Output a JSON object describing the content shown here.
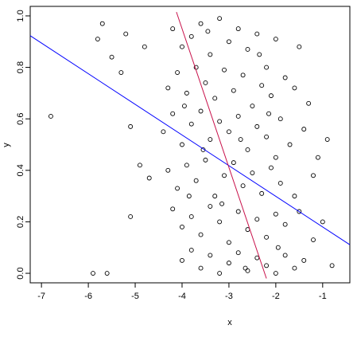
{
  "chart_data": {
    "type": "scatter",
    "x_label": "x",
    "y_label": "y",
    "xlim": [
      -7.24,
      -0.42
    ],
    "ylim": [
      -0.037,
      1.037
    ],
    "xticks": [
      -7,
      -6,
      -5,
      -4,
      -3,
      -2,
      -1
    ],
    "yticks": [
      {
        "value": 0,
        "label": "0.0"
      },
      0.2,
      0.4,
      0.6,
      0.8,
      {
        "value": 1,
        "label": "1.0"
      }
    ],
    "series": [
      {
        "color": "#000000",
        "x": [
          -6.8,
          -5.7,
          -5.8,
          -5.5,
          -5.1,
          -5.1,
          -5.9,
          -5.6,
          -5.3,
          -4.9,
          -4.7,
          -0.9,
          -0.8,
          -1.0,
          -4.8,
          -5.2,
          -4.2,
          -4.0,
          -3.8,
          -3.6,
          -3.4,
          -3.2,
          -3.0,
          -2.8,
          -2.6,
          -2.4,
          -2.2,
          -2.0,
          -1.8,
          -1.5,
          -4.3,
          -4.1,
          -3.9,
          -3.7,
          -3.5,
          -3.3,
          -3.1,
          -2.9,
          -2.7,
          -2.5,
          -2.3,
          -2.1,
          -1.9,
          -1.6,
          -1.3,
          -4.4,
          -4.2,
          -4.0,
          -3.8,
          -3.6,
          -3.4,
          -3.2,
          -3.0,
          -2.8,
          -2.6,
          -2.4,
          -2.2,
          -2.0,
          -1.7,
          -1.4,
          -1.1,
          -4.3,
          -4.1,
          -3.9,
          -3.7,
          -3.5,
          -3.3,
          -3.1,
          -2.9,
          -2.7,
          -2.5,
          -2.3,
          -2.1,
          -1.9,
          -1.6,
          -1.2,
          -4.2,
          -4.0,
          -3.8,
          -3.6,
          -3.4,
          -3.2,
          -3.0,
          -2.8,
          -2.6,
          -2.4,
          -2.2,
          -2.0,
          -1.8,
          -1.5,
          -1.2,
          -4.0,
          -3.8,
          -3.6,
          -3.4,
          -3.2,
          -3.0,
          -2.8,
          -2.6,
          -2.4,
          -2.2,
          -2.0,
          -1.8,
          -1.6,
          -1.4,
          -3.95,
          -3.55,
          -3.15,
          -2.75,
          -2.35,
          -1.95,
          -3.45,
          -2.65,
          -3.85,
          -2.15
        ],
        "y": [
          0.61,
          0.97,
          0.91,
          0.84,
          0.57,
          0.22,
          0.0,
          0.0,
          0.78,
          0.42,
          0.37,
          0.52,
          0.03,
          0.2,
          0.88,
          0.93,
          0.95,
          0.88,
          0.92,
          0.97,
          0.85,
          0.99,
          0.9,
          0.95,
          0.87,
          0.93,
          0.8,
          0.91,
          0.76,
          0.88,
          0.72,
          0.78,
          0.7,
          0.8,
          0.74,
          0.68,
          0.79,
          0.71,
          0.77,
          0.65,
          0.73,
          0.69,
          0.6,
          0.72,
          0.66,
          0.55,
          0.62,
          0.5,
          0.58,
          0.63,
          0.52,
          0.59,
          0.55,
          0.61,
          0.48,
          0.57,
          0.53,
          0.45,
          0.5,
          0.56,
          0.45,
          0.4,
          0.33,
          0.42,
          0.36,
          0.44,
          0.3,
          0.38,
          0.43,
          0.34,
          0.39,
          0.31,
          0.41,
          0.35,
          0.3,
          0.38,
          0.25,
          0.18,
          0.22,
          0.15,
          0.26,
          0.2,
          0.12,
          0.24,
          0.17,
          0.21,
          0.14,
          0.23,
          0.19,
          0.24,
          0.13,
          0.05,
          0.09,
          0.02,
          0.07,
          0.0,
          0.04,
          0.08,
          0.01,
          0.06,
          0.03,
          0.0,
          0.07,
          0.02,
          0.05,
          0.65,
          0.48,
          0.27,
          0.52,
          0.85,
          0.1,
          0.94,
          0.02,
          0.3,
          0.62
        ]
      }
    ],
    "lines": [
      {
        "color": "#0000ff",
        "x": [
          -7.24,
          -0.42
        ],
        "y": [
          0.923,
          0.111
        ]
      },
      {
        "color": "#c8104a",
        "x": [
          -4.12,
          -2.2
        ],
        "y": [
          1.015,
          -0.02
        ]
      }
    ]
  }
}
